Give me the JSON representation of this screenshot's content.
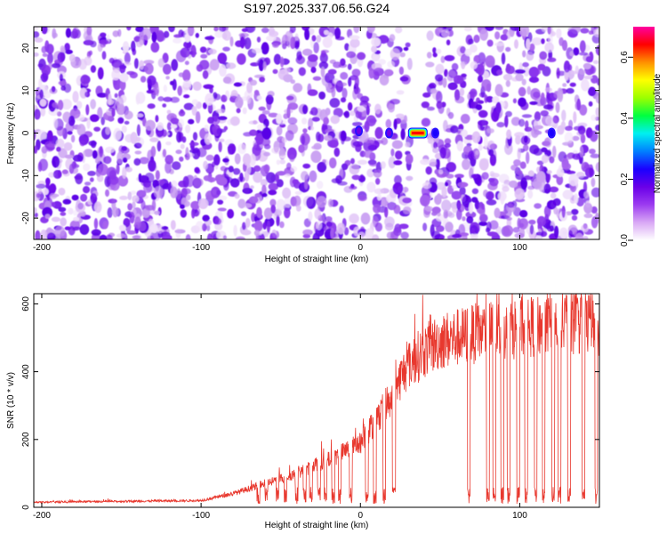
{
  "title": "S197.2025.337.06.56.G24",
  "chart_data": [
    {
      "type": "heatmap",
      "title": "S197.2025.337.06.56.G24",
      "xlabel": "Height of straight line (km)",
      "ylabel": "Frequency (Hz)",
      "xlim": [
        -205,
        150
      ],
      "ylim": [
        -25,
        25
      ],
      "x_ticks": [
        -200,
        -100,
        0,
        100
      ],
      "y_ticks": [
        -20,
        -10,
        0,
        10,
        20
      ],
      "colorbar": {
        "label": "Normalized spectral amplitude",
        "range": [
          0.0,
          0.7
        ],
        "ticks": [
          0.0,
          0.2,
          0.4,
          0.6
        ],
        "colors": [
          "#ffffff",
          "#d9a8f5",
          "#9c3cf0",
          "#6a00e8",
          "#1a00ff",
          "#0080ff",
          "#00f0f0",
          "#00ff40",
          "#9cff00",
          "#ffff00",
          "#ff9000",
          "#ff0000",
          "#ff00a0"
        ]
      },
      "gap_x_range": [
        31,
        40
      ],
      "signal_peaks": [
        {
          "x": -1,
          "y": 0.5,
          "value": 0.18
        },
        {
          "x": 18,
          "y": 0,
          "value": 0.15
        },
        {
          "x": 36,
          "y": 0,
          "value": 0.62
        },
        {
          "x": 47,
          "y": 0,
          "value": 0.22
        },
        {
          "x": 120,
          "y": 0,
          "value": 0.22
        }
      ],
      "background_level": [
        0.02,
        0.09
      ]
    },
    {
      "type": "line",
      "xlabel": "Height of straight line (km)",
      "ylabel": "SNR (10 * v/v)",
      "xlim": [
        -205,
        150
      ],
      "ylim": [
        0,
        630
      ],
      "x_ticks": [
        -200,
        -100,
        0,
        100
      ],
      "y_ticks": [
        0,
        200,
        400,
        600
      ],
      "color": "#e8382e",
      "envelope": {
        "x": [
          -205,
          -100,
          -80,
          -60,
          -40,
          -20,
          0,
          10,
          20,
          25,
          30,
          40,
          50,
          60,
          80,
          100,
          120,
          150
        ],
        "y": [
          15,
          20,
          40,
          70,
          100,
          140,
          190,
          260,
          330,
          380,
          420,
          460,
          490,
          500,
          520,
          530,
          540,
          540
        ]
      },
      "dropouts_x": [
        -64,
        -59,
        -52,
        -47,
        -40,
        -35,
        -31,
        -26,
        -22,
        -17,
        -13,
        -6,
        4,
        9,
        15,
        68,
        80,
        84,
        89,
        93,
        99,
        104,
        110,
        115,
        121,
        125,
        131,
        140,
        148
      ],
      "dropout_level": [
        10,
        60
      ]
    }
  ]
}
